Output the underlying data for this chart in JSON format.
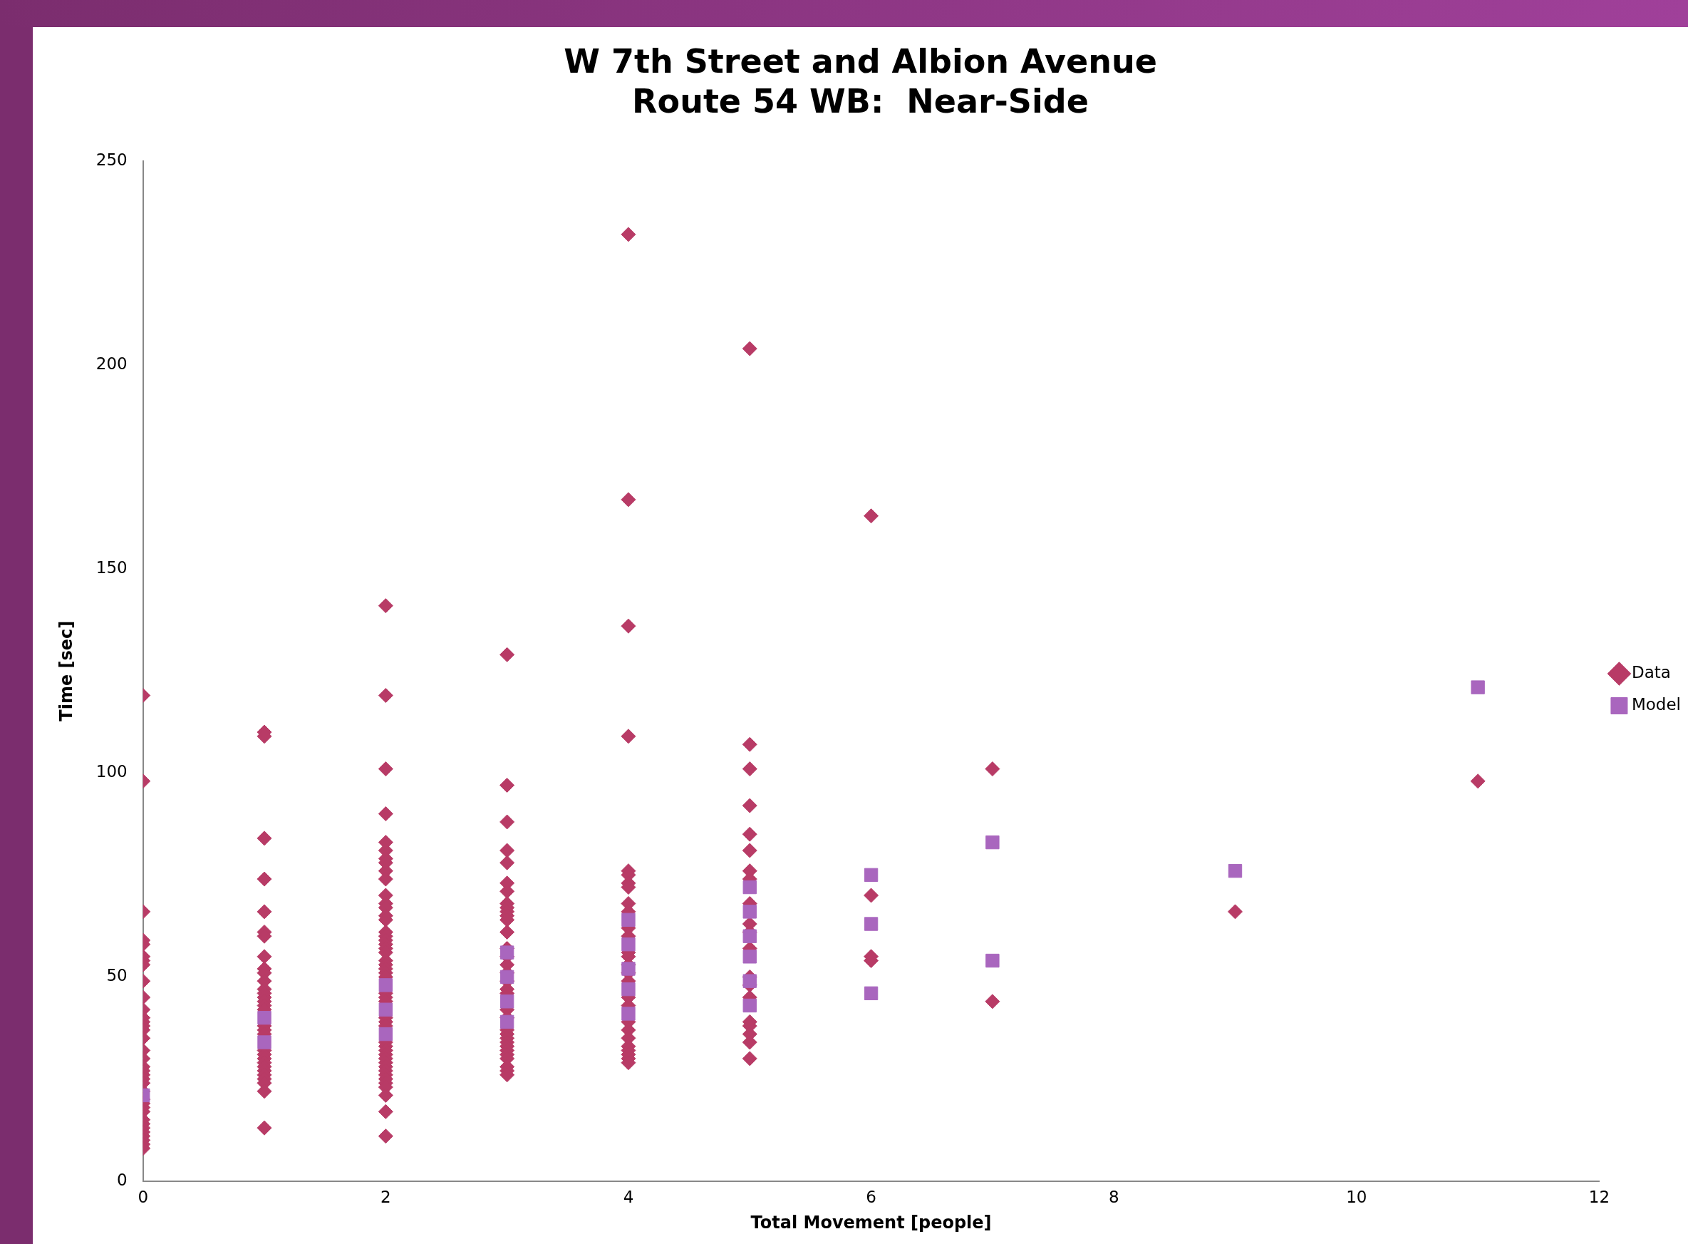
{
  "chart_data": {
    "type": "scatter",
    "title": "W 7th Street and Albion Avenue\nRoute 54 WB:  Near-Side",
    "xlabel": "Total Movement [people]",
    "ylabel": "Time [sec]",
    "xlim": [
      0,
      12
    ],
    "xticks": [
      0,
      2,
      4,
      6,
      8,
      10,
      12
    ],
    "ylim": [
      0,
      250
    ],
    "yticks": [
      0,
      50,
      100,
      150,
      200,
      250
    ],
    "grid": false,
    "legend": "right",
    "series": [
      {
        "name": "Data",
        "color": "#b83b66",
        "marker": "diamond",
        "x": [
          0,
          0,
          0,
          0,
          0,
          0,
          0,
          0,
          0,
          0,
          0,
          0,
          0,
          0,
          0,
          0,
          0,
          0,
          0,
          0,
          0,
          0,
          0,
          0,
          0,
          0,
          0,
          0,
          0,
          0,
          0,
          0,
          0,
          0,
          0,
          0,
          1,
          1,
          1,
          1,
          1,
          1,
          1,
          1,
          1,
          1,
          1,
          1,
          1,
          1,
          1,
          1,
          1,
          1,
          1,
          1,
          1,
          1,
          1,
          1,
          1,
          1,
          1,
          1,
          1,
          1,
          1,
          2,
          2,
          2,
          2,
          2,
          2,
          2,
          2,
          2,
          2,
          2,
          2,
          2,
          2,
          2,
          2,
          2,
          2,
          2,
          2,
          2,
          2,
          2,
          2,
          2,
          2,
          2,
          2,
          2,
          2,
          2,
          2,
          2,
          2,
          2,
          2,
          2,
          2,
          2,
          2,
          2,
          2,
          2,
          2,
          2,
          2,
          2,
          3,
          3,
          3,
          3,
          3,
          3,
          3,
          3,
          3,
          3,
          3,
          3,
          3,
          3,
          3,
          3,
          3,
          3,
          3,
          3,
          3,
          3,
          3,
          3,
          3,
          3,
          3,
          3,
          3,
          3,
          3,
          3,
          3,
          4,
          4,
          4,
          4,
          4,
          4,
          4,
          4,
          4,
          4,
          4,
          4,
          4,
          4,
          4,
          4,
          4,
          4,
          4,
          4,
          4,
          4,
          4,
          4,
          4,
          4,
          4,
          5,
          5,
          5,
          5,
          5,
          5,
          5,
          5,
          5,
          5,
          5,
          5,
          5,
          5,
          5,
          5,
          5,
          5,
          5,
          5,
          6,
          6,
          6,
          6,
          7,
          7,
          9,
          11
        ],
        "values": [
          119,
          98,
          66,
          59,
          58,
          55,
          54,
          53,
          49,
          45,
          42,
          40,
          39,
          38,
          37,
          35,
          32,
          30,
          28,
          27,
          26,
          25,
          24,
          22,
          20,
          19,
          18,
          17,
          15,
          14,
          13,
          12,
          11,
          10,
          9,
          8,
          110,
          109,
          84,
          74,
          66,
          61,
          60,
          55,
          52,
          51,
          49,
          47,
          46,
          45,
          44,
          43,
          42,
          38,
          37,
          36,
          32,
          31,
          30,
          29,
          28,
          27,
          26,
          25,
          24,
          22,
          13,
          141,
          119,
          101,
          90,
          83,
          81,
          79,
          78,
          76,
          74,
          70,
          68,
          67,
          65,
          64,
          61,
          60,
          59,
          58,
          57,
          56,
          54,
          53,
          52,
          51,
          50,
          46,
          45,
          44,
          40,
          39,
          38,
          34,
          33,
          32,
          31,
          30,
          29,
          28,
          27,
          26,
          25,
          24,
          23,
          21,
          17,
          11,
          129,
          97,
          88,
          81,
          78,
          73,
          71,
          68,
          67,
          66,
          65,
          64,
          61,
          57,
          55,
          53,
          51,
          49,
          47,
          46,
          42,
          40,
          37,
          36,
          35,
          34,
          33,
          32,
          31,
          30,
          28,
          27,
          26,
          232,
          167,
          136,
          109,
          76,
          75,
          73,
          72,
          68,
          66,
          62,
          60,
          56,
          55,
          53,
          51,
          49,
          45,
          43,
          39,
          37,
          35,
          33,
          32,
          31,
          30,
          29,
          204,
          107,
          101,
          92,
          85,
          81,
          76,
          74,
          68,
          63,
          61,
          57,
          50,
          48,
          45,
          39,
          38,
          36,
          34,
          30,
          163,
          70,
          55,
          54,
          101,
          44,
          66,
          98
        ]
      },
      {
        "name": "Model",
        "color": "#a966be",
        "marker": "square",
        "x": [
          0,
          1,
          1,
          2,
          2,
          2,
          3,
          3,
          3,
          3,
          4,
          4,
          4,
          4,
          4,
          5,
          5,
          5,
          5,
          5,
          5,
          6,
          6,
          6,
          7,
          7,
          9,
          11
        ],
        "values": [
          21,
          40,
          34,
          48,
          42,
          36,
          56,
          50,
          44,
          39,
          64,
          58,
          52,
          47,
          41,
          72,
          66,
          60,
          55,
          49,
          43,
          75,
          63,
          46,
          83,
          54,
          76,
          121
        ]
      }
    ]
  }
}
